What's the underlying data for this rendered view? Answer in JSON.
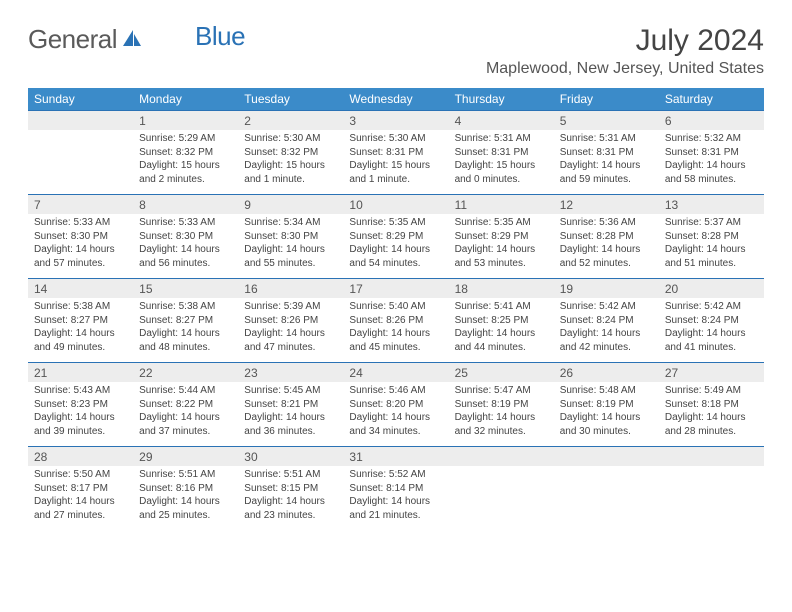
{
  "brand": {
    "part1": "General",
    "part2": "Blue"
  },
  "title": "July 2024",
  "location": "Maplewood, New Jersey, United States",
  "colors": {
    "header_bg": "#3b8bc9",
    "header_text": "#ffffff",
    "daynum_bg": "#ededed",
    "divider": "#2a72b5",
    "text": "#444444",
    "brand_gray": "#5a5a5a",
    "brand_blue": "#2a72b5"
  },
  "weekdays": [
    "Sunday",
    "Monday",
    "Tuesday",
    "Wednesday",
    "Thursday",
    "Friday",
    "Saturday"
  ],
  "weeks": [
    [
      null,
      {
        "n": "1",
        "sr": "5:29 AM",
        "ss": "8:32 PM",
        "dl": "15 hours and 2 minutes."
      },
      {
        "n": "2",
        "sr": "5:30 AM",
        "ss": "8:32 PM",
        "dl": "15 hours and 1 minute."
      },
      {
        "n": "3",
        "sr": "5:30 AM",
        "ss": "8:31 PM",
        "dl": "15 hours and 1 minute."
      },
      {
        "n": "4",
        "sr": "5:31 AM",
        "ss": "8:31 PM",
        "dl": "15 hours and 0 minutes."
      },
      {
        "n": "5",
        "sr": "5:31 AM",
        "ss": "8:31 PM",
        "dl": "14 hours and 59 minutes."
      },
      {
        "n": "6",
        "sr": "5:32 AM",
        "ss": "8:31 PM",
        "dl": "14 hours and 58 minutes."
      }
    ],
    [
      {
        "n": "7",
        "sr": "5:33 AM",
        "ss": "8:30 PM",
        "dl": "14 hours and 57 minutes."
      },
      {
        "n": "8",
        "sr": "5:33 AM",
        "ss": "8:30 PM",
        "dl": "14 hours and 56 minutes."
      },
      {
        "n": "9",
        "sr": "5:34 AM",
        "ss": "8:30 PM",
        "dl": "14 hours and 55 minutes."
      },
      {
        "n": "10",
        "sr": "5:35 AM",
        "ss": "8:29 PM",
        "dl": "14 hours and 54 minutes."
      },
      {
        "n": "11",
        "sr": "5:35 AM",
        "ss": "8:29 PM",
        "dl": "14 hours and 53 minutes."
      },
      {
        "n": "12",
        "sr": "5:36 AM",
        "ss": "8:28 PM",
        "dl": "14 hours and 52 minutes."
      },
      {
        "n": "13",
        "sr": "5:37 AM",
        "ss": "8:28 PM",
        "dl": "14 hours and 51 minutes."
      }
    ],
    [
      {
        "n": "14",
        "sr": "5:38 AM",
        "ss": "8:27 PM",
        "dl": "14 hours and 49 minutes."
      },
      {
        "n": "15",
        "sr": "5:38 AM",
        "ss": "8:27 PM",
        "dl": "14 hours and 48 minutes."
      },
      {
        "n": "16",
        "sr": "5:39 AM",
        "ss": "8:26 PM",
        "dl": "14 hours and 47 minutes."
      },
      {
        "n": "17",
        "sr": "5:40 AM",
        "ss": "8:26 PM",
        "dl": "14 hours and 45 minutes."
      },
      {
        "n": "18",
        "sr": "5:41 AM",
        "ss": "8:25 PM",
        "dl": "14 hours and 44 minutes."
      },
      {
        "n": "19",
        "sr": "5:42 AM",
        "ss": "8:24 PM",
        "dl": "14 hours and 42 minutes."
      },
      {
        "n": "20",
        "sr": "5:42 AM",
        "ss": "8:24 PM",
        "dl": "14 hours and 41 minutes."
      }
    ],
    [
      {
        "n": "21",
        "sr": "5:43 AM",
        "ss": "8:23 PM",
        "dl": "14 hours and 39 minutes."
      },
      {
        "n": "22",
        "sr": "5:44 AM",
        "ss": "8:22 PM",
        "dl": "14 hours and 37 minutes."
      },
      {
        "n": "23",
        "sr": "5:45 AM",
        "ss": "8:21 PM",
        "dl": "14 hours and 36 minutes."
      },
      {
        "n": "24",
        "sr": "5:46 AM",
        "ss": "8:20 PM",
        "dl": "14 hours and 34 minutes."
      },
      {
        "n": "25",
        "sr": "5:47 AM",
        "ss": "8:19 PM",
        "dl": "14 hours and 32 minutes."
      },
      {
        "n": "26",
        "sr": "5:48 AM",
        "ss": "8:19 PM",
        "dl": "14 hours and 30 minutes."
      },
      {
        "n": "27",
        "sr": "5:49 AM",
        "ss": "8:18 PM",
        "dl": "14 hours and 28 minutes."
      }
    ],
    [
      {
        "n": "28",
        "sr": "5:50 AM",
        "ss": "8:17 PM",
        "dl": "14 hours and 27 minutes."
      },
      {
        "n": "29",
        "sr": "5:51 AM",
        "ss": "8:16 PM",
        "dl": "14 hours and 25 minutes."
      },
      {
        "n": "30",
        "sr": "5:51 AM",
        "ss": "8:15 PM",
        "dl": "14 hours and 23 minutes."
      },
      {
        "n": "31",
        "sr": "5:52 AM",
        "ss": "8:14 PM",
        "dl": "14 hours and 21 minutes."
      },
      null,
      null,
      null
    ]
  ],
  "labels": {
    "sunrise": "Sunrise: ",
    "sunset": "Sunset: ",
    "daylight": "Daylight: "
  }
}
